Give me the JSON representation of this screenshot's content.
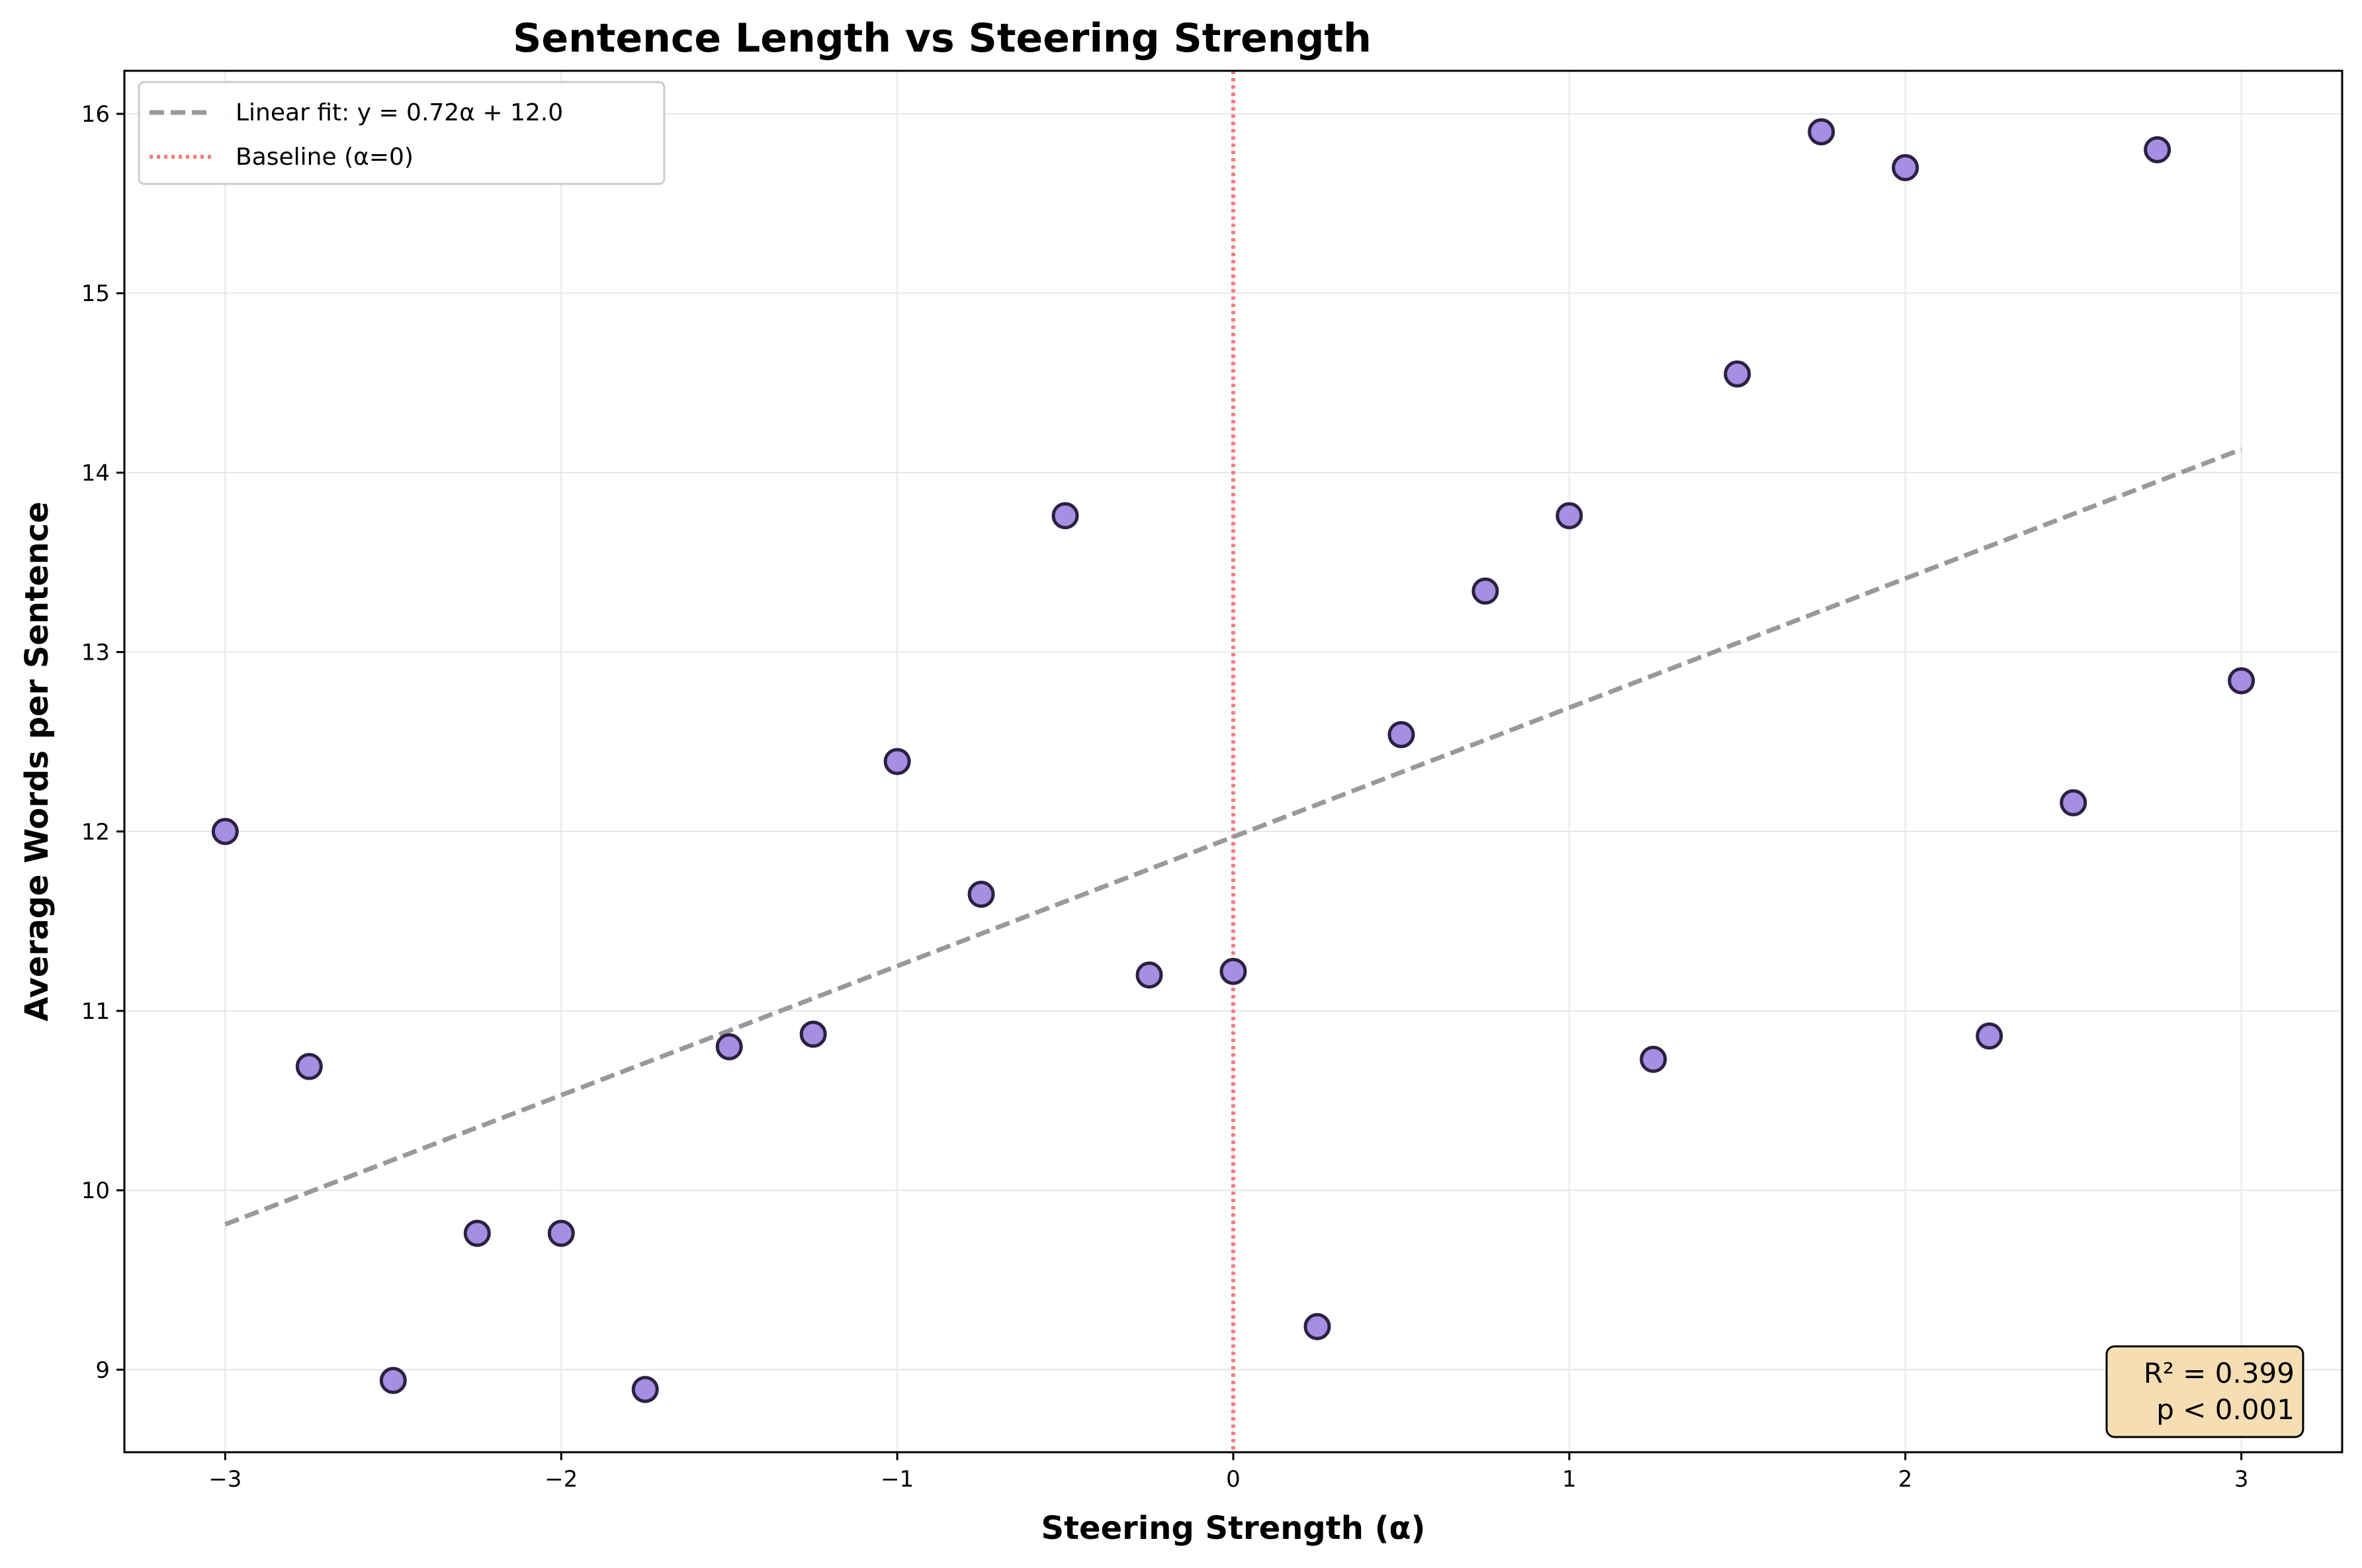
{
  "chart_data": {
    "type": "scatter",
    "title": "Sentence Length vs Steering Strength",
    "xlabel": "Steering Strength (α)",
    "ylabel": "Average Words per Sentence",
    "xlim": [
      -3.3,
      3.3
    ],
    "ylim": [
      8.54,
      16.24
    ],
    "xticks": [
      -3,
      -2,
      -1,
      0,
      1,
      2,
      3
    ],
    "xtick_labels": [
      "−3",
      "−2",
      "−1",
      "0",
      "1",
      "2",
      "3"
    ],
    "yticks": [
      9,
      10,
      11,
      12,
      13,
      14,
      15,
      16
    ],
    "ytick_labels": [
      "9",
      "10",
      "11",
      "12",
      "13",
      "14",
      "15",
      "16"
    ],
    "grid": true,
    "legend_position": "top-left",
    "points": {
      "x": [
        -3,
        -2.75,
        -2.5,
        -2.25,
        -2,
        -1.75,
        -1.5,
        -1.25,
        -1,
        -0.75,
        -0.5,
        -0.25,
        0,
        0.25,
        0.5,
        0.75,
        1,
        1.25,
        1.5,
        1.75,
        2,
        2.25,
        2.5,
        2.75,
        3
      ],
      "y": [
        12.0,
        10.69,
        8.94,
        9.76,
        9.76,
        8.89,
        10.8,
        10.87,
        12.39,
        11.65,
        13.76,
        11.2,
        11.22,
        9.24,
        12.54,
        13.34,
        13.76,
        10.73,
        14.55,
        15.9,
        15.7,
        10.86,
        12.16,
        15.8,
        12.84
      ]
    },
    "fit_line": {
      "label": "Linear fit: y = 0.72α + 12.0",
      "slope": 0.72,
      "intercept": 11.97,
      "x_range": [
        -3,
        3
      ]
    },
    "baseline": {
      "label": "Baseline (α=0)",
      "x": 0
    },
    "stats": {
      "r2": "R² = 0.399",
      "p": "p < 0.001"
    },
    "colors": {
      "point_fill": "#a68ee3",
      "point_edge": "#2b2140",
      "fit_line": "#999999",
      "baseline": "#f08080",
      "stats_box_fill": "#f5deb3",
      "grid": "#e6e6e6"
    }
  }
}
